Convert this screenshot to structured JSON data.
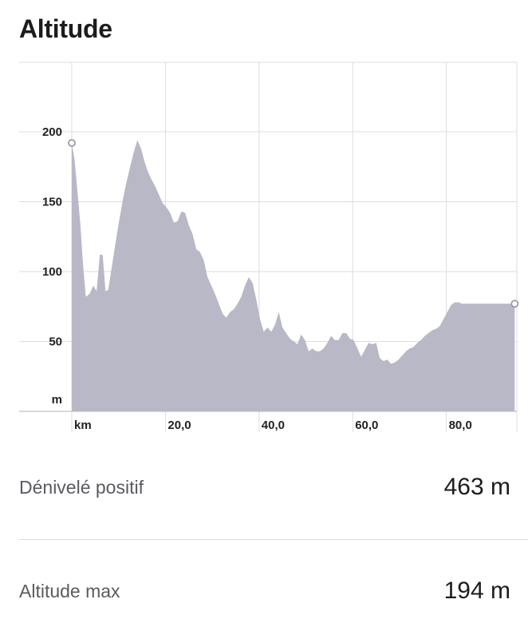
{
  "header": {
    "title": "Altitude"
  },
  "chart_data": {
    "type": "area",
    "title": "Altitude",
    "xlabel": "km",
    "ylabel": "m",
    "xlim": [
      0,
      95
    ],
    "ylim": [
      0,
      230
    ],
    "x_ticks": [
      20,
      40,
      60,
      80
    ],
    "x_tick_labels": [
      "20,0",
      "40,0",
      "60,0",
      "80,0"
    ],
    "y_ticks": [
      50,
      100,
      150,
      200
    ],
    "y_tick_labels": [
      "50",
      "100",
      "150",
      "200"
    ],
    "grid": true,
    "colors": {
      "fill": "#b8b8c6",
      "grid": "#dcdce2",
      "axis": "#bfbfc8",
      "marker": "#ffffff",
      "marker_stroke": "#9a9aa4"
    },
    "series": [
      {
        "x": [
          0,
          0.6,
          1.2,
          1.8,
          2.4,
          3.0,
          3.8,
          4.6,
          5.3,
          6.0,
          6.6,
          7.2,
          7.8,
          8.4,
          9.0,
          9.7,
          10.3,
          11.0,
          11.6,
          12.4,
          13.2,
          14.0,
          14.8,
          15.5,
          16.2,
          17.0,
          17.8,
          18.6,
          19.4,
          20.2,
          21.0,
          21.8,
          22.6,
          23.4,
          24.2,
          25.0,
          25.8,
          26.6,
          27.4,
          28.2,
          29.0,
          29.8,
          30.6,
          31.4,
          32.2,
          33.0,
          33.8,
          34.6,
          35.4,
          36.2,
          37.0,
          37.8,
          38.6,
          39.4,
          40.2,
          41.0,
          41.8,
          42.6,
          43.4,
          44.2,
          45.0,
          45.8,
          46.6,
          47.4,
          48.2,
          49.0,
          49.8,
          50.6,
          51.4,
          52.2,
          53.0,
          53.8,
          54.6,
          55.4,
          56.2,
          57.0,
          57.8,
          58.6,
          59.4,
          60.2,
          61.0,
          61.8,
          62.6,
          63.4,
          64.2,
          65.0,
          65.8,
          66.6,
          67.4,
          68.2,
          69.0,
          69.8,
          70.6,
          71.4,
          72.2,
          73.0,
          73.8,
          74.6,
          75.4,
          76.2,
          77.0,
          77.8,
          78.6,
          79.4,
          80.2,
          81.0,
          81.8,
          82.6,
          83.4,
          84.2,
          85.0,
          85.8,
          86.6,
          87.4,
          88.2,
          89.0,
          89.8,
          90.6,
          91.4,
          92.2,
          93.0,
          93.8,
          94.6
        ],
        "y": [
          192,
          180,
          158,
          135,
          105,
          82,
          84,
          90,
          86,
          112,
          112,
          86,
          87,
          100,
          113,
          128,
          140,
          153,
          163,
          174,
          185,
          194,
          188,
          179,
          172,
          166,
          161,
          155,
          149,
          146,
          142,
          135,
          136,
          143,
          142,
          133,
          127,
          116,
          114,
          108,
          96,
          90,
          84,
          77,
          70,
          67,
          71,
          73,
          77,
          82,
          90,
          96,
          92,
          80,
          66,
          57,
          60,
          57,
          62,
          71,
          60,
          56,
          52,
          50,
          48,
          55,
          51,
          43,
          45,
          43,
          43,
          45,
          49,
          54,
          51,
          51,
          56,
          56,
          52,
          51,
          45,
          39,
          44,
          49,
          48,
          49,
          38,
          36,
          37,
          34,
          35,
          37,
          40,
          43,
          45,
          46,
          49,
          51,
          54,
          56,
          58,
          59,
          61,
          66,
          71,
          76,
          78,
          78,
          77,
          77,
          77,
          77,
          77,
          77,
          77,
          77,
          77,
          77,
          77,
          77,
          77,
          77,
          77
        ]
      }
    ],
    "start_marker": {
      "x": 0,
      "y": 192
    },
    "end_marker": {
      "x": 94.6,
      "y": 77
    }
  },
  "stats": [
    {
      "label": "Dénivelé positif",
      "value": "463 m"
    },
    {
      "label": "Altitude max",
      "value": "194 m"
    }
  ]
}
